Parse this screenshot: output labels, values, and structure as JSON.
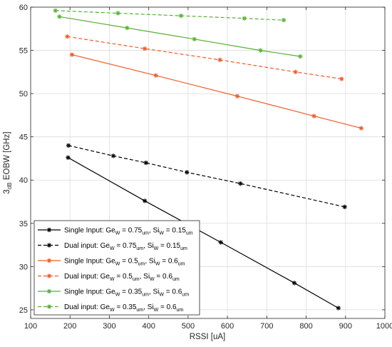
{
  "chart_data": {
    "type": "line",
    "xlabel": "RSSI [uA]",
    "ylabel": "3dB EOBW [GHz]",
    "xlim": [
      100,
      1000
    ],
    "ylim": [
      24,
      60
    ],
    "xticks": [
      100,
      200,
      300,
      400,
      500,
      600,
      700,
      800,
      900,
      1000
    ],
    "yticks": [
      25,
      30,
      35,
      40,
      45,
      50,
      55,
      60
    ],
    "grid": true,
    "legend_position": "bottom-left",
    "series": [
      {
        "name": "Single Input: GeW = 0.75um, SiW = 0.15um",
        "color": "#000000",
        "dash": "solid",
        "points": [
          [
            195,
            42.6
          ],
          [
            390,
            37.6
          ],
          [
            583,
            32.8
          ],
          [
            770,
            28.1
          ],
          [
            882,
            25.2
          ]
        ]
      },
      {
        "name": "Dual input: GeW = 0.75um, SiW = 0.15um",
        "color": "#000000",
        "dash": "dashed",
        "points": [
          [
            196,
            44.0
          ],
          [
            310,
            42.8
          ],
          [
            393,
            42.0
          ],
          [
            497,
            40.9
          ],
          [
            633,
            39.6
          ],
          [
            898,
            36.9
          ]
        ]
      },
      {
        "name": "Single Input: GeW = 0.5um, SiW = 0.6um",
        "color": "#f05a28",
        "dash": "solid",
        "points": [
          [
            205,
            54.5
          ],
          [
            418,
            52.1
          ],
          [
            625,
            49.7
          ],
          [
            820,
            47.4
          ],
          [
            940,
            46.0
          ]
        ]
      },
      {
        "name": "Dual input: GeW = 0.5um, SiW = 0.6um",
        "color": "#f05a28",
        "dash": "dashed",
        "points": [
          [
            193,
            56.6
          ],
          [
            390,
            55.2
          ],
          [
            581,
            53.9
          ],
          [
            773,
            52.5
          ],
          [
            890,
            51.7
          ]
        ]
      },
      {
        "name": "Single Input: GeW = 0.35um, SiW = 0.6um",
        "color": "#55b034",
        "dash": "solid",
        "points": [
          [
            173,
            58.9
          ],
          [
            345,
            57.6
          ],
          [
            516,
            56.3
          ],
          [
            684,
            55.0
          ],
          [
            785,
            54.3
          ]
        ]
      },
      {
        "name": "Dual input: GeW = 0.35um, SiW = 0.6um",
        "color": "#55b034",
        "dash": "dashed",
        "points": [
          [
            163,
            59.6
          ],
          [
            322,
            59.3
          ],
          [
            482,
            59.0
          ],
          [
            643,
            58.7
          ],
          [
            743,
            58.5
          ]
        ]
      }
    ],
    "legend": [
      {
        "label": "Single Input: Ge",
        "sub1": "W",
        "mid1": " =  0.75",
        "sub2": "um",
        "mid2": ", Si",
        "sub3": "W",
        "mid3": " = 0.15",
        "sub4": "um"
      },
      {
        "label": "Dual input: Ge",
        "sub1": "W",
        "mid1": " =  0.75",
        "sub2": "um",
        "mid2": ", Si",
        "sub3": "W",
        "mid3": " = 0.15",
        "sub4": "um"
      },
      {
        "label": "Single Input: Ge",
        "sub1": "W",
        "mid1": " = 0.5",
        "sub2": "um",
        "mid2": ", Si",
        "sub3": "W",
        "mid3": " =  0.6",
        "sub4": "um"
      },
      {
        "label": "Dual input: Ge",
        "sub1": "W",
        "mid1": " = 0.5",
        "sub2": "um",
        "mid2": ", Si",
        "sub3": "W",
        "mid3": " = 0.6",
        "sub4": "um"
      },
      {
        "label": "Single Input: Ge",
        "sub1": "W",
        "mid1": " = 0.35",
        "sub2": "um",
        "mid2": ", Si",
        "sub3": "W",
        "mid3": " = 0.6",
        "sub4": "um"
      },
      {
        "label": "Dual input: Ge",
        "sub1": "W",
        "mid1": " = 0.35",
        "sub2": "um",
        "mid2": ", Si",
        "sub3": "W",
        "mid3": " = 0.6",
        "sub4": "um"
      }
    ]
  }
}
